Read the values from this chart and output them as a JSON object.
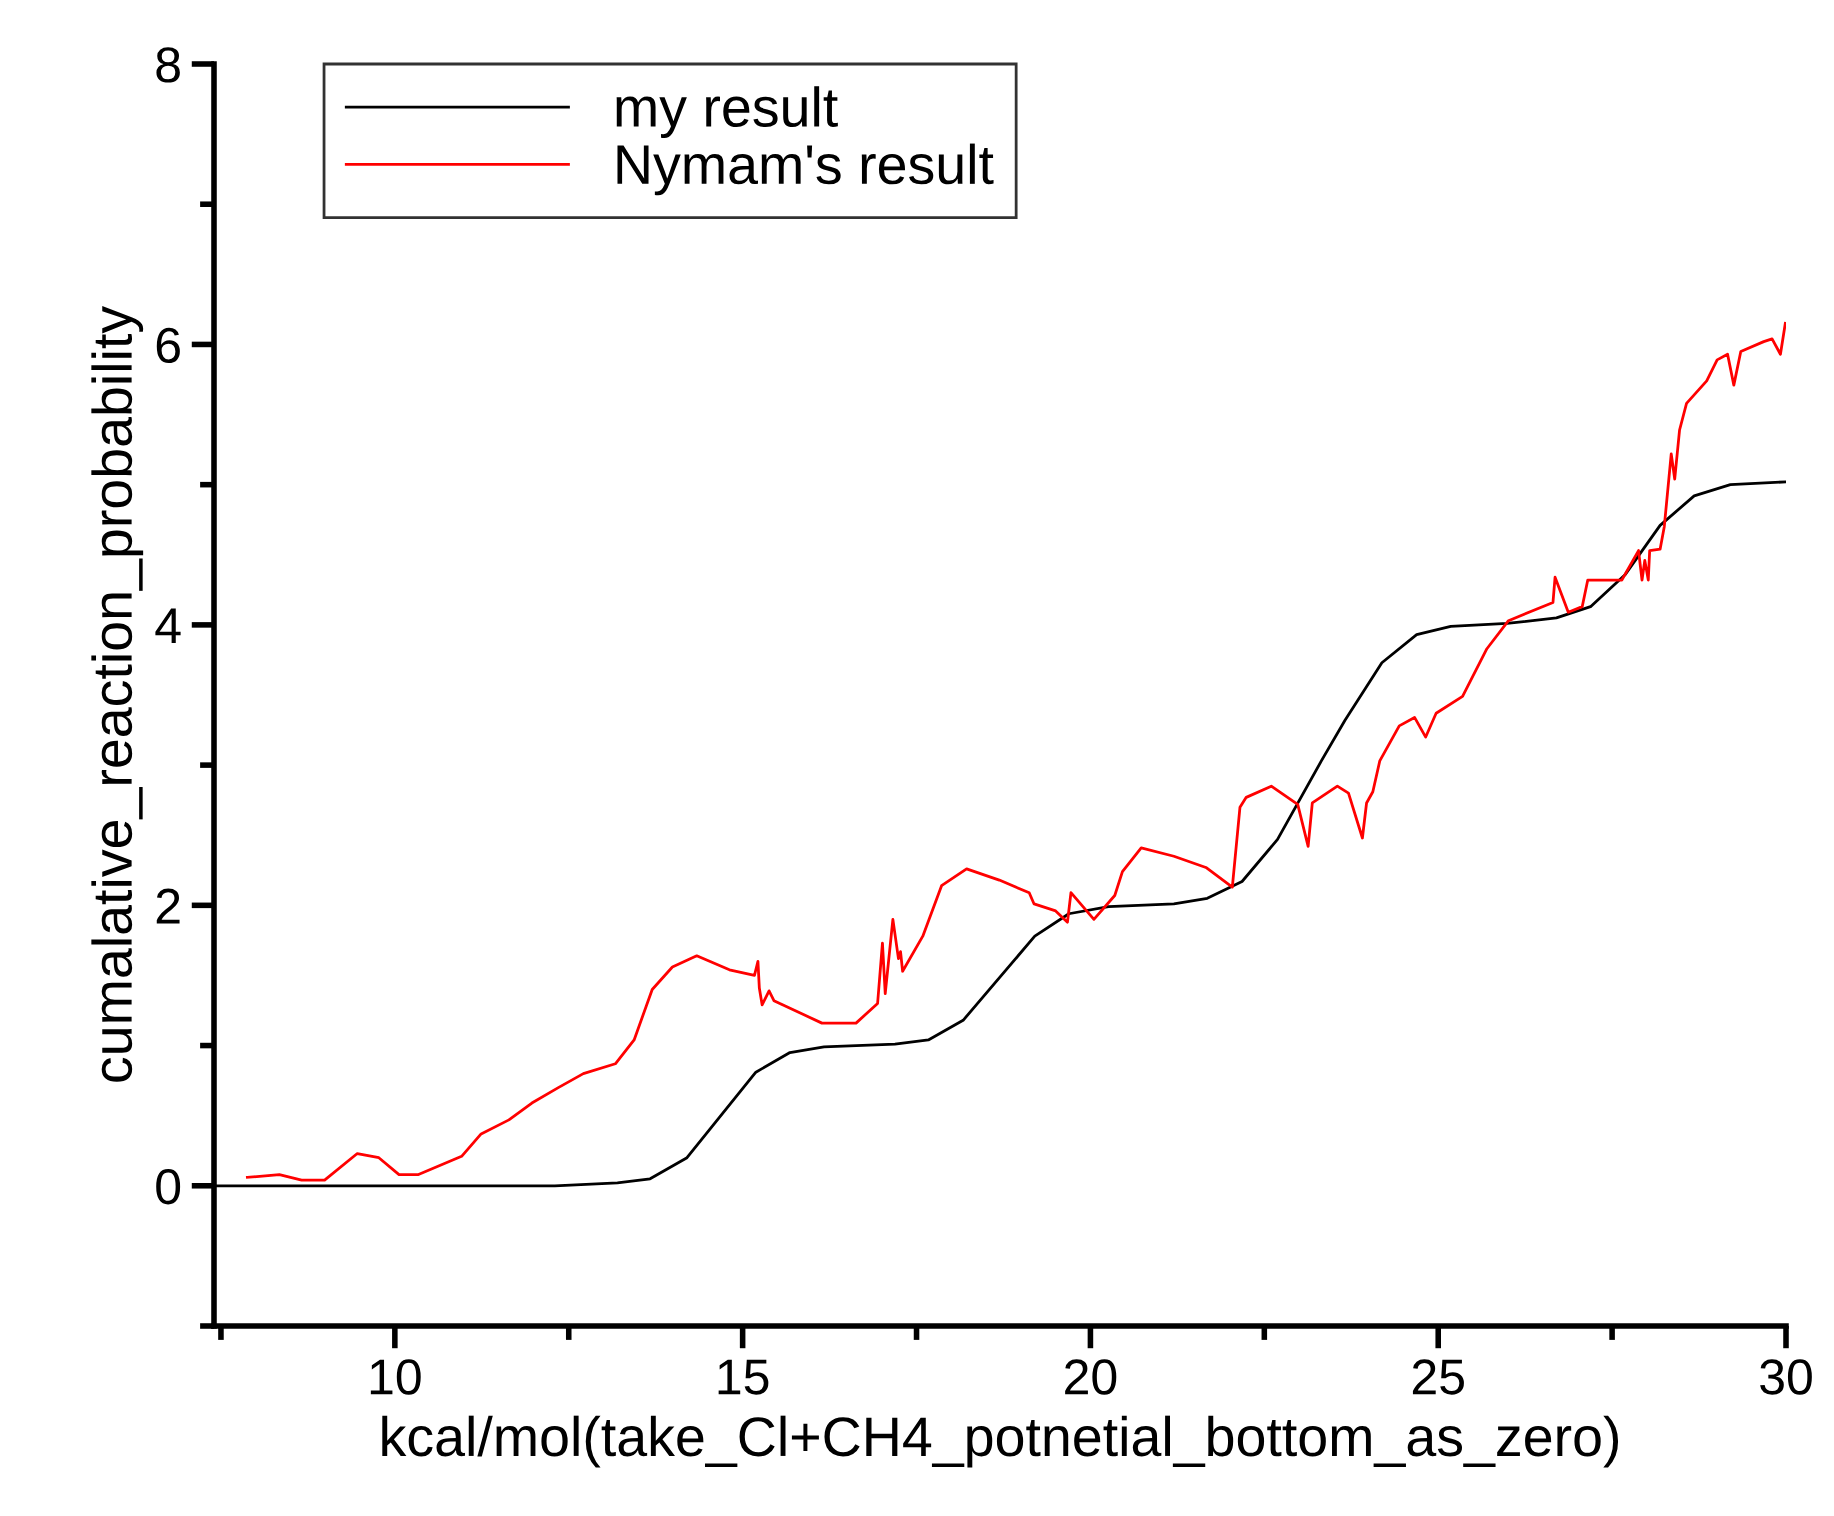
{
  "chart_data": {
    "type": "line",
    "xlabel": "kcal/mol(take_Cl+CH4_potnetial_bottom_as_zero)",
    "ylabel": "cumalative_reaction_probability",
    "xlim": [
      7.4,
      30
    ],
    "ylim": [
      -1,
      8
    ],
    "xticks": [
      {
        "value": 7.5,
        "label": null
      },
      10,
      {
        "value": 12.5,
        "label": null
      },
      15,
      {
        "value": 17.5,
        "label": null
      },
      20,
      {
        "value": 22.5,
        "label": null
      },
      25,
      {
        "value": 27.5,
        "label": null
      },
      30
    ],
    "yticks": [
      {
        "value": -1,
        "label": null
      },
      0,
      {
        "value": 1,
        "label": null
      },
      2,
      {
        "value": 3,
        "label": null
      },
      4,
      {
        "value": 5,
        "label": null
      },
      6,
      {
        "value": 7,
        "label": null
      },
      8
    ],
    "grid": false,
    "legend": "top left",
    "line_style": "solid",
    "marker": "none",
    "series": [
      {
        "name": "my result",
        "color": "#000000",
        "x": [
          7.4,
          12.3,
          13.2,
          13.67,
          14.2,
          15.19,
          15.68,
          16.17,
          17.19,
          17.67,
          18.17,
          19.2,
          19.69,
          20.26,
          21.2,
          21.68,
          22.18,
          22.69,
          23.32,
          23.66,
          24.19,
          24.69,
          25.18,
          25.99,
          26.7,
          27.19,
          27.69,
          28.19,
          28.68,
          29.2,
          29.99
        ],
        "values": [
          0,
          0,
          0.02,
          0.05,
          0.2,
          0.81,
          0.95,
          0.99,
          1.01,
          1.04,
          1.18,
          1.78,
          1.94,
          1.99,
          2.01,
          2.05,
          2.17,
          2.47,
          3.03,
          3.32,
          3.73,
          3.93,
          3.99,
          4.01,
          4.05,
          4.13,
          4.36,
          4.71,
          4.92,
          5.0,
          5.02
        ]
      },
      {
        "name": "Nymam's result",
        "color": "#ff0000",
        "x": [
          7.88,
          8.34,
          8.66,
          8.99,
          9.46,
          9.77,
          10.06,
          10.34,
          10.96,
          11.24,
          11.64,
          11.97,
          12.35,
          12.71,
          13.17,
          13.44,
          13.7,
          13.99,
          14.34,
          14.81,
          15.17,
          15.22,
          15.24,
          15.28,
          15.38,
          15.45,
          16.14,
          16.63,
          16.94,
          17.01,
          17.05,
          17.16,
          17.24,
          17.27,
          17.3,
          17.59,
          17.86,
          18.22,
          18.69,
          19.12,
          19.19,
          19.5,
          19.67,
          19.72,
          20.05,
          20.35,
          20.46,
          20.73,
          21.2,
          21.66,
          22.04,
          22.15,
          22.24,
          22.6,
          22.98,
          23.13,
          23.19,
          23.55,
          23.71,
          23.91,
          23.97,
          24.06,
          24.16,
          24.44,
          24.66,
          24.82,
          24.97,
          25.35,
          25.7,
          26.01,
          26.65,
          26.68,
          26.87,
          27.07,
          27.15,
          27.64,
          27.88,
          27.93,
          27.97,
          28.02,
          28.04,
          28.19,
          28.25,
          28.35,
          28.4,
          28.47,
          28.57,
          28.86,
          29.01,
          29.16,
          29.25,
          29.35,
          29.68,
          29.8,
          29.92,
          29.99
        ],
        "values": [
          0.06,
          0.08,
          0.04,
          0.04,
          0.23,
          0.2,
          0.08,
          0.08,
          0.21,
          0.37,
          0.47,
          0.59,
          0.7,
          0.8,
          0.87,
          1.04,
          1.4,
          1.56,
          1.64,
          1.54,
          1.5,
          1.6,
          1.41,
          1.29,
          1.39,
          1.32,
          1.16,
          1.16,
          1.3,
          1.73,
          1.37,
          1.9,
          1.62,
          1.67,
          1.53,
          1.78,
          2.14,
          2.26,
          2.18,
          2.09,
          2.01,
          1.96,
          1.88,
          2.09,
          1.9,
          2.07,
          2.24,
          2.41,
          2.35,
          2.27,
          2.13,
          2.7,
          2.77,
          2.85,
          2.72,
          2.42,
          2.73,
          2.85,
          2.8,
          2.48,
          2.73,
          2.81,
          3.03,
          3.28,
          3.34,
          3.2,
          3.37,
          3.49,
          3.83,
          4.03,
          4.16,
          4.34,
          4.09,
          4.13,
          4.32,
          4.32,
          4.53,
          4.32,
          4.46,
          4.32,
          4.53,
          4.54,
          4.7,
          5.22,
          5.04,
          5.39,
          5.58,
          5.74,
          5.89,
          5.93,
          5.71,
          5.95,
          6.02,
          6.04,
          5.93,
          6.15
        ]
      }
    ]
  }
}
